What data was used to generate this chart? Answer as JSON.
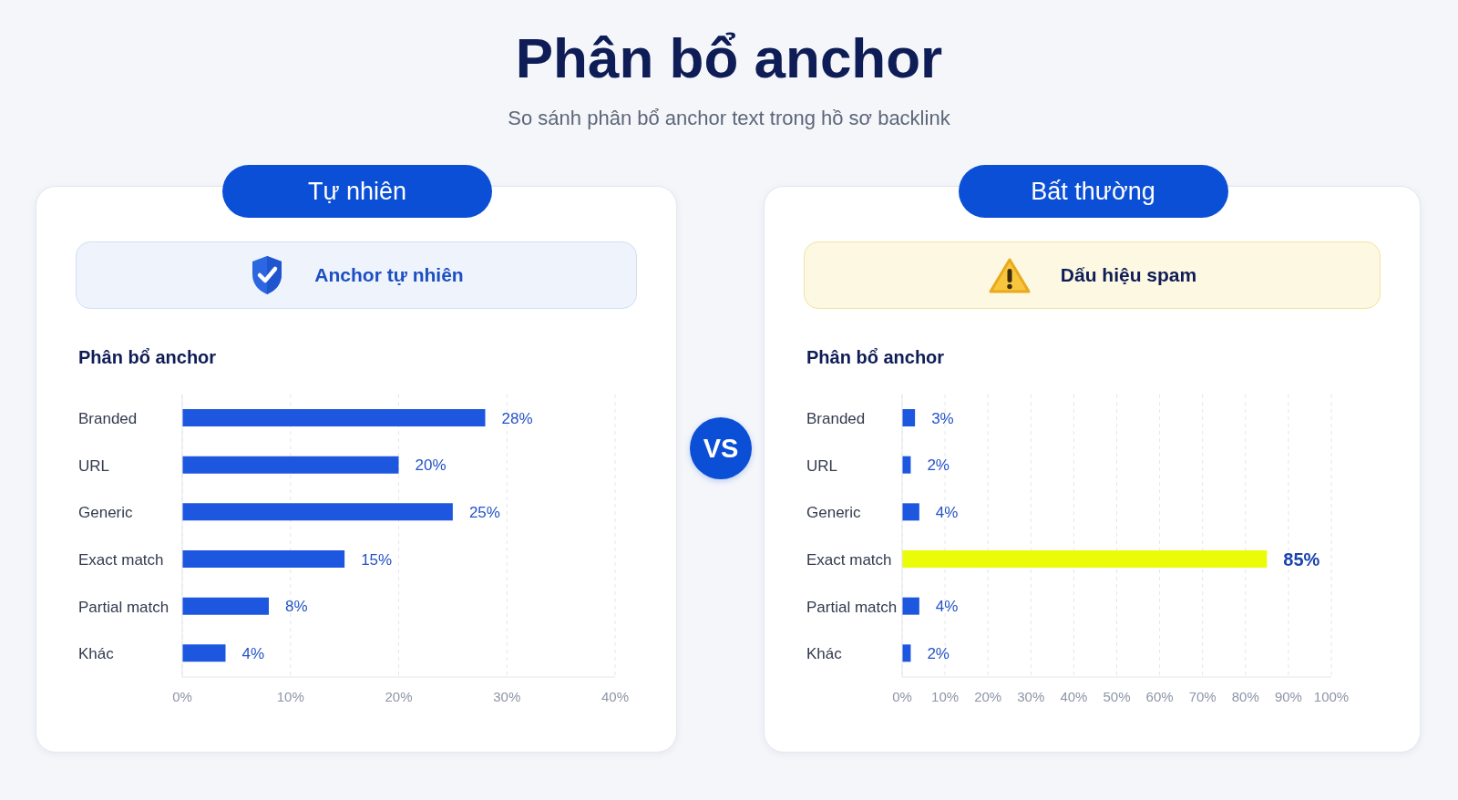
{
  "chart_data": [
    {
      "type": "other",
      "title": "Phân bổ anchor",
      "subtitle": "So sánh phân bổ anchor text trong hồ sơ backlink",
      "annotations": [
        "VS"
      ]
    },
    {
      "type": "bar",
      "orientation": "horizontal",
      "title": "Phân bổ anchor",
      "annotations": [
        "Tự nhiên",
        "Anchor tự nhiên"
      ],
      "categories": [
        "Branded",
        "URL",
        "Generic",
        "Exact match",
        "Partial match",
        "Khác"
      ],
      "values": [
        28,
        20,
        25,
        15,
        8,
        4
      ],
      "color": "#1d56df",
      "value_labels": [
        "28%",
        "20%",
        "25%",
        "15%",
        "8%",
        "4%"
      ],
      "xlim": [
        0,
        40
      ],
      "xticks": [
        {
          "value": 0,
          "label": "0%"
        },
        {
          "value": 10,
          "label": "10%"
        },
        {
          "value": 20,
          "label": "20%"
        },
        {
          "value": 30,
          "label": "30%"
        },
        {
          "value": 40,
          "label": "40%"
        }
      ],
      "grid": "x"
    },
    {
      "type": "bar",
      "orientation": "horizontal",
      "title": "Phân bổ anchor",
      "annotations": [
        "Bất thường",
        "Dấu hiệu spam"
      ],
      "categories": [
        "Branded",
        "URL",
        "Generic",
        "Exact match",
        "Partial match",
        "Khác"
      ],
      "values": [
        3,
        2,
        4,
        85,
        4,
        2
      ],
      "colors": [
        "#1d56df",
        "#1d56df",
        "#1d56df",
        "#eafc08",
        "#1d56df",
        "#1d56df"
      ],
      "value_labels": [
        "3%",
        "2%",
        "4%",
        "85%",
        "4%",
        "2%"
      ],
      "xlim": [
        0,
        100
      ],
      "xticks": [
        {
          "value": 0,
          "label": "0%"
        },
        {
          "value": 10,
          "label": "10%"
        },
        {
          "value": 20,
          "label": "20%"
        },
        {
          "value": 30,
          "label": "30%"
        },
        {
          "value": 40,
          "label": "40%"
        },
        {
          "value": 50,
          "label": "50%"
        },
        {
          "value": 60,
          "label": "60%"
        },
        {
          "value": 70,
          "label": "70%"
        },
        {
          "value": 80,
          "label": "80%"
        },
        {
          "value": 90,
          "label": "90%"
        },
        {
          "value": 100,
          "label": "100%"
        }
      ],
      "grid": "x"
    }
  ]
}
